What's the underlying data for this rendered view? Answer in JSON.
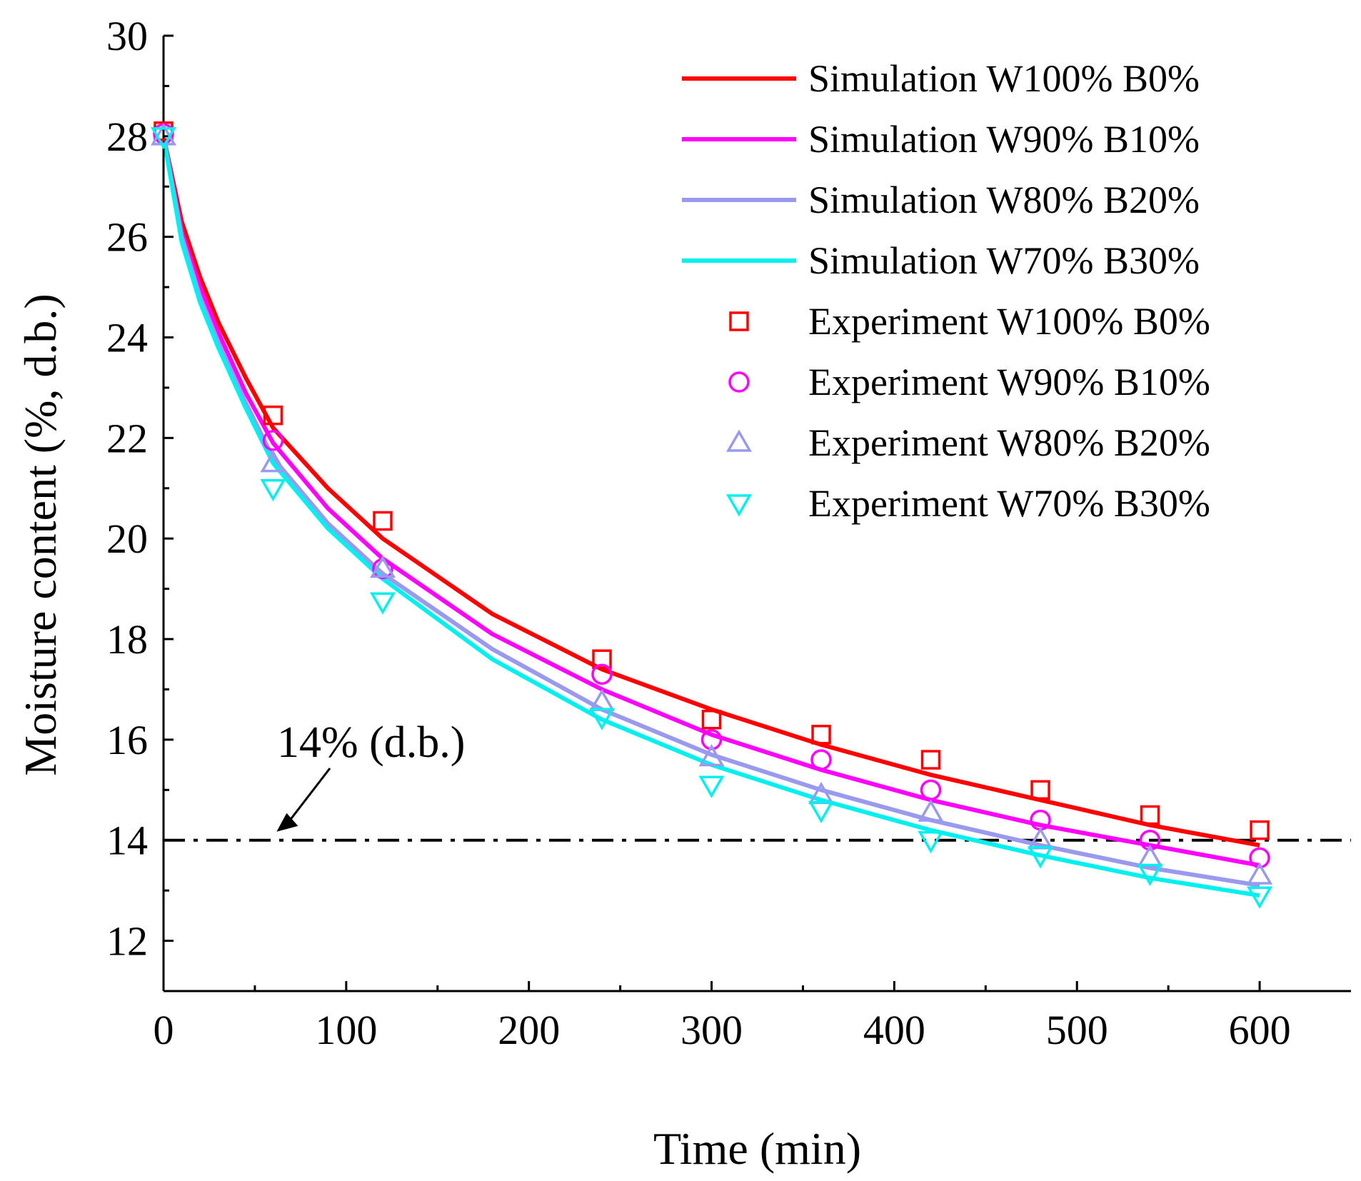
{
  "chart_data": {
    "type": "line",
    "title": "",
    "xlabel": "Time (min)",
    "ylabel": "Moisture content (%, d.b.)",
    "xlim": [
      0,
      650
    ],
    "ylim": [
      11,
      30
    ],
    "xticks": [
      0,
      100,
      200,
      300,
      400,
      500,
      600
    ],
    "xtick_labels": [
      "0",
      "100",
      "200",
      "300",
      "400",
      "500",
      "600"
    ],
    "yticks": [
      12,
      14,
      16,
      18,
      20,
      22,
      24,
      26,
      28,
      30
    ],
    "ytick_labels": [
      "12",
      "14",
      "16",
      "18",
      "20",
      "22",
      "24",
      "26",
      "28",
      "30"
    ],
    "reference_line": {
      "y": 14,
      "style": "dash-dot",
      "color": "#000000"
    },
    "annotation": {
      "text": "14% (d.b.)",
      "target": {
        "x": 58,
        "y": 14
      }
    },
    "legend_position": "top-right",
    "simulation_series": [
      {
        "name": "Simulation W100% B0%",
        "color": "#ff0000",
        "x": [
          0,
          10,
          20,
          30,
          45,
          60,
          90,
          120,
          180,
          240,
          300,
          360,
          420,
          480,
          540,
          600
        ],
        "y": [
          28.0,
          26.3,
          25.2,
          24.3,
          23.2,
          22.2,
          21.0,
          20.0,
          18.5,
          17.4,
          16.6,
          15.9,
          15.3,
          14.8,
          14.3,
          13.9
        ]
      },
      {
        "name": "Simulation W90% B10%",
        "color": "#ff00ff",
        "x": [
          0,
          10,
          20,
          30,
          45,
          60,
          90,
          120,
          180,
          240,
          300,
          360,
          420,
          480,
          540,
          600
        ],
        "y": [
          28.0,
          26.1,
          25.0,
          24.1,
          22.9,
          21.9,
          20.6,
          19.6,
          18.1,
          17.0,
          16.1,
          15.4,
          14.8,
          14.3,
          13.9,
          13.5
        ]
      },
      {
        "name": "Simulation W80% B20%",
        "color": "#9999ee",
        "x": [
          0,
          10,
          20,
          30,
          45,
          60,
          90,
          120,
          180,
          240,
          300,
          360,
          420,
          480,
          540,
          600
        ],
        "y": [
          28.0,
          26.0,
          24.8,
          23.9,
          22.7,
          21.6,
          20.3,
          19.3,
          17.8,
          16.6,
          15.7,
          15.0,
          14.4,
          13.9,
          13.45,
          13.1
        ]
      },
      {
        "name": "Simulation W70% B30%",
        "color": "#00f0f0",
        "x": [
          0,
          10,
          20,
          30,
          45,
          60,
          90,
          120,
          180,
          240,
          300,
          360,
          420,
          480,
          540,
          600
        ],
        "y": [
          28.0,
          25.9,
          24.7,
          23.8,
          22.6,
          21.5,
          20.2,
          19.2,
          17.6,
          16.4,
          15.5,
          14.8,
          14.2,
          13.7,
          13.25,
          12.9
        ]
      }
    ],
    "experiment_series": [
      {
        "name": "Experiment W100% B0%",
        "color": "#ff0000",
        "marker": "square",
        "x": [
          0,
          60,
          120,
          240,
          300,
          360,
          420,
          480,
          540,
          600
        ],
        "y": [
          28.1,
          22.45,
          20.35,
          17.6,
          16.4,
          16.1,
          15.6,
          15.0,
          14.5,
          14.2
        ]
      },
      {
        "name": "Experiment W90% B10%",
        "color": "#ff00ff",
        "marker": "circle",
        "x": [
          0,
          60,
          120,
          240,
          300,
          360,
          420,
          480,
          540,
          600
        ],
        "y": [
          28.05,
          21.95,
          19.4,
          17.3,
          16.0,
          15.6,
          15.0,
          14.4,
          14.0,
          13.65
        ]
      },
      {
        "name": "Experiment W80% B20%",
        "color": "#9999ee",
        "marker": "triangle-up",
        "x": [
          0,
          60,
          120,
          240,
          300,
          360,
          420,
          480,
          540,
          600
        ],
        "y": [
          28.0,
          21.5,
          19.4,
          16.75,
          15.65,
          14.9,
          14.55,
          14.0,
          13.65,
          13.3
        ]
      },
      {
        "name": "Experiment W70% B30%",
        "color": "#00f0f0",
        "marker": "triangle-down",
        "x": [
          0,
          60,
          120,
          240,
          300,
          360,
          420,
          480,
          540,
          600
        ],
        "y": [
          28.0,
          21.0,
          18.75,
          16.45,
          15.1,
          14.6,
          14.0,
          13.7,
          13.35,
          12.9
        ]
      }
    ]
  }
}
